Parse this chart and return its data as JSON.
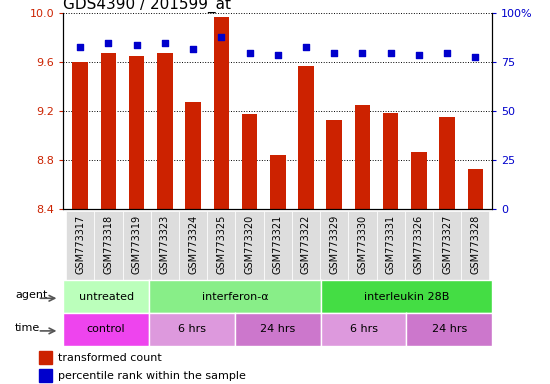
{
  "title": "GDS4390 / 201599_at",
  "samples": [
    "GSM773317",
    "GSM773318",
    "GSM773319",
    "GSM773323",
    "GSM773324",
    "GSM773325",
    "GSM773320",
    "GSM773321",
    "GSM773322",
    "GSM773329",
    "GSM773330",
    "GSM773331",
    "GSM773326",
    "GSM773327",
    "GSM773328"
  ],
  "transformed_counts": [
    9.6,
    9.68,
    9.65,
    9.68,
    9.28,
    9.97,
    9.18,
    8.84,
    9.57,
    9.13,
    9.25,
    9.19,
    8.87,
    9.15,
    8.73
  ],
  "percentile_ranks": [
    83,
    85,
    84,
    85,
    82,
    88,
    80,
    79,
    83,
    80,
    80,
    80,
    79,
    80,
    78
  ],
  "ylim_left": [
    8.4,
    10.0
  ],
  "ylim_right": [
    0,
    100
  ],
  "yticks_left": [
    8.4,
    8.8,
    9.2,
    9.6,
    10.0
  ],
  "yticks_right": [
    0,
    25,
    50,
    75,
    100
  ],
  "bar_color": "#cc2200",
  "dot_color": "#0000cc",
  "bar_width": 0.55,
  "agent_groups": [
    {
      "label": "untreated",
      "start": 0,
      "end": 3,
      "color": "#bbffbb"
    },
    {
      "label": "interferon-α",
      "start": 3,
      "end": 9,
      "color": "#88ee88"
    },
    {
      "label": "interleukin 28B",
      "start": 9,
      "end": 15,
      "color": "#44dd44"
    }
  ],
  "time_groups": [
    {
      "label": "control",
      "start": 0,
      "end": 3,
      "color": "#ee44ee"
    },
    {
      "label": "6 hrs",
      "start": 3,
      "end": 6,
      "color": "#dd99dd"
    },
    {
      "label": "24 hrs",
      "start": 6,
      "end": 9,
      "color": "#cc77cc"
    },
    {
      "label": "6 hrs",
      "start": 9,
      "end": 12,
      "color": "#dd99dd"
    },
    {
      "label": "24 hrs",
      "start": 12,
      "end": 15,
      "color": "#cc77cc"
    }
  ],
  "tick_label_color_left": "#cc2200",
  "tick_label_color_right": "#0000cc",
  "title_fontsize": 11,
  "axis_fontsize": 8,
  "sample_fontsize": 7
}
